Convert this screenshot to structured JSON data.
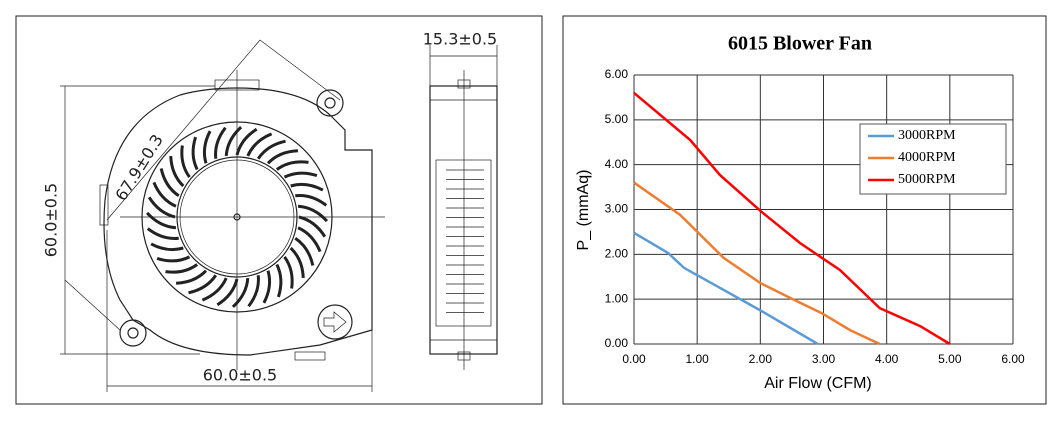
{
  "drawing": {
    "dimensions": [
      "15.3±0.5",
      "67.9±0.3",
      "60.0±0.5",
      "60.0±0.5"
    ]
  },
  "chart_data": {
    "type": "line",
    "title": "6015 Blower Fan",
    "x_label": "Air Flow (CFM)",
    "y_label": "P_ (mmAq)",
    "xlim": [
      0,
      6
    ],
    "ylim": [
      0,
      6
    ],
    "xticks": [
      {
        "value": 0,
        "label": "0.00"
      },
      {
        "value": 1,
        "label": "1.00"
      },
      {
        "value": 2,
        "label": "2.00"
      },
      {
        "value": 3,
        "label": "3.00"
      },
      {
        "value": 4,
        "label": "4.00"
      },
      {
        "value": 5,
        "label": "5.00"
      },
      {
        "value": 6,
        "label": "6.00"
      }
    ],
    "yticks": [
      {
        "value": 0,
        "label": "0.00"
      },
      {
        "value": 1,
        "label": "1.00"
      },
      {
        "value": 2,
        "label": "2.00"
      },
      {
        "value": 3,
        "label": "3.00"
      },
      {
        "value": 4,
        "label": "4.00"
      },
      {
        "value": 5,
        "label": "5.00"
      },
      {
        "value": 6,
        "label": "6.00"
      }
    ],
    "grid": true,
    "legend": "upper right",
    "series": [
      {
        "name": "3000RPM",
        "color": "#5b9bd5",
        "x": [
          0,
          0.54,
          0.79,
          2,
          2.91
        ],
        "values": [
          2.48,
          2.03,
          1.7,
          0.75,
          0
        ]
      },
      {
        "name": "4000RPM",
        "color": "#ed7d31",
        "x": [
          0,
          0.73,
          1.42,
          2,
          2.47,
          2.97,
          3.42,
          3.89
        ],
        "values": [
          3.6,
          2.88,
          1.92,
          1.36,
          1.03,
          0.69,
          0.31,
          0
        ]
      },
      {
        "name": "5000RPM",
        "color": "#ff0000",
        "x": [
          0,
          0.89,
          1.36,
          2,
          2.63,
          3.26,
          3.89,
          4.53,
          5.0
        ],
        "values": [
          5.6,
          4.55,
          3.77,
          2.97,
          2.25,
          1.65,
          0.8,
          0.4,
          0
        ]
      }
    ]
  }
}
